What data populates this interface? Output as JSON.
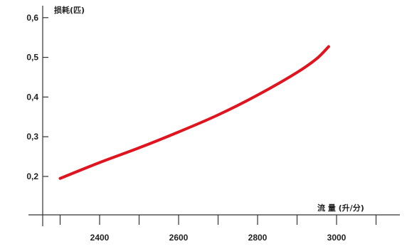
{
  "chart_data": {
    "type": "line",
    "ylabel": "损耗(匹)",
    "xlabel": "流 量 (升/分)",
    "xlim": [
      2000,
      3150
    ],
    "ylim": [
      0.1,
      0.63
    ],
    "x_ticks": [
      2400,
      2600,
      2800,
      3000
    ],
    "x_tick_labels": [
      "2400",
      "2600",
      "2800",
      "3000"
    ],
    "x_minor_ticks": [
      2300,
      2500,
      2700,
      2900,
      3100
    ],
    "y_ticks": [
      0.2,
      0.3,
      0.4,
      0.5,
      0.6
    ],
    "y_tick_labels": [
      "0,2",
      "0,3",
      "0,4",
      "0,5",
      "0,6"
    ],
    "grid": false,
    "series": [
      {
        "color": "#e0141e",
        "x": [
          2300,
          2400,
          2500,
          2600,
          2700,
          2800,
          2900,
          2950,
          2980
        ],
        "y": [
          0.195,
          0.235,
          0.272,
          0.312,
          0.355,
          0.405,
          0.462,
          0.497,
          0.527
        ]
      }
    ]
  }
}
